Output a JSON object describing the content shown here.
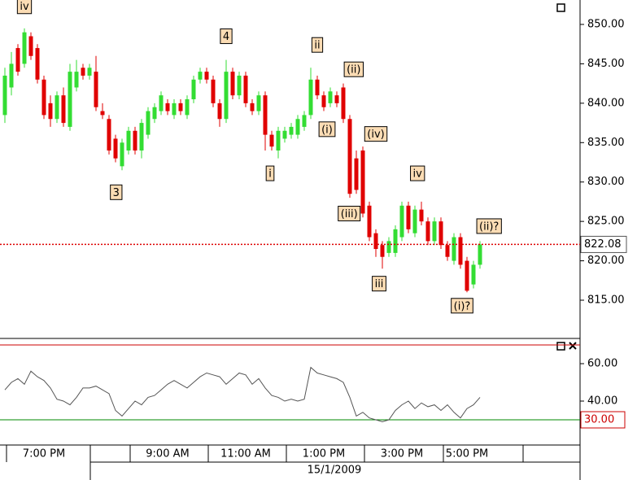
{
  "chart_data": [
    {
      "type": "candlestick",
      "categories": [
        null,
        null,
        null,
        null,
        null,
        null,
        "7:00 PM",
        null,
        null,
        null,
        null,
        null,
        null,
        null,
        null,
        null,
        null,
        null,
        null,
        null,
        null,
        null,
        null,
        null,
        null,
        "9:00 AM",
        null,
        null,
        null,
        null,
        null,
        null,
        null,
        null,
        null,
        null,
        null,
        "11:00 AM",
        null,
        null,
        null,
        null,
        null,
        null,
        null,
        null,
        null,
        null,
        null,
        "1:00 PM",
        null,
        null,
        null,
        null,
        null,
        null,
        null,
        null,
        null,
        null,
        null,
        "3:00 PM",
        null,
        null,
        null,
        null,
        null,
        null,
        null,
        null,
        null,
        "5:00 PM",
        null,
        null
      ],
      "date_label": "15/1/2009",
      "open": [
        838.5,
        842,
        847,
        845,
        848.5,
        847,
        843,
        840,
        838,
        841,
        837,
        842,
        844.5,
        843.5,
        844,
        839,
        838,
        835.5,
        832,
        834,
        836.5,
        834,
        836,
        838,
        839,
        840,
        838.5,
        840,
        838.5,
        840.5,
        843,
        844,
        843,
        840,
        838,
        844,
        841,
        843.5,
        840,
        839,
        841,
        836,
        834,
        835.5,
        836,
        836,
        837,
        838.5,
        843,
        841,
        840,
        841,
        842,
        838,
        833,
        834,
        827,
        823.5,
        822,
        821,
        821,
        823,
        827,
        823.5,
        826.5,
        825,
        822.5,
        825,
        822,
        820,
        823,
        820,
        817,
        819.5
      ],
      "high": [
        844.5,
        846.5,
        847.5,
        849.5,
        849,
        847.5,
        843.5,
        841,
        841.5,
        842,
        845,
        845.5,
        845,
        845,
        846,
        840,
        838.5,
        836,
        835.5,
        837,
        837,
        838,
        839.5,
        840,
        841.5,
        840.5,
        840.5,
        840.5,
        841,
        843.5,
        844.5,
        844.5,
        843.5,
        840.5,
        845.5,
        844.5,
        844,
        844,
        840.5,
        841.5,
        841.5,
        836.5,
        837,
        837,
        837.5,
        838.5,
        839,
        844.5,
        843.5,
        841.5,
        842,
        841.5,
        842.5,
        838.5,
        834,
        834.5,
        827.5,
        824,
        822.5,
        823,
        824.5,
        827.5,
        827.5,
        827,
        827.5,
        825.5,
        825.5,
        825.5,
        822.5,
        823.5,
        823.5,
        820.5,
        820,
        822.5
      ],
      "low": [
        837.5,
        841,
        843.5,
        844.5,
        845.5,
        842.5,
        838,
        837,
        837.5,
        837,
        836.5,
        841.5,
        843,
        843,
        839,
        838,
        833.5,
        832.5,
        831.5,
        833.5,
        833.5,
        833,
        835.5,
        837.5,
        838.5,
        838.5,
        838,
        838.5,
        838,
        840,
        842.5,
        842.5,
        839.5,
        837,
        837.5,
        840.5,
        840.5,
        839.5,
        838.5,
        838.5,
        834,
        834,
        833,
        835,
        835.5,
        835.5,
        836.5,
        838,
        840.5,
        839,
        839.5,
        839.5,
        837.5,
        828,
        828.5,
        825.5,
        822.5,
        820.5,
        819,
        820.5,
        820.5,
        822.5,
        823.5,
        823,
        824.5,
        822,
        822,
        821.5,
        820,
        819.5,
        819,
        816,
        816.5,
        819
      ],
      "close": [
        843.5,
        845,
        844,
        849,
        846,
        843,
        838.5,
        838,
        841,
        837.5,
        844,
        844,
        843.5,
        844.5,
        839.5,
        838.5,
        834,
        833,
        835,
        836.5,
        834,
        837.5,
        839,
        839.5,
        841,
        839,
        840,
        839,
        840.5,
        843,
        844,
        843,
        840,
        838,
        844,
        841,
        843.5,
        840,
        839,
        841,
        836,
        834.5,
        836.5,
        836.5,
        837,
        838,
        838.5,
        843,
        841,
        839.5,
        841.5,
        840,
        838,
        828.5,
        829,
        826,
        823,
        821.5,
        820.5,
        822.5,
        824,
        827,
        824,
        826.5,
        825,
        822.5,
        825,
        822,
        820.5,
        823,
        819.5,
        816.2,
        819.5,
        822.08
      ],
      "up_color": "#33dd33",
      "down_color": "#e00000",
      "ylim": [
        810.25,
        853.1
      ],
      "yticks": [
        {
          "value": 815,
          "label": "815.00"
        },
        {
          "value": 820,
          "label": "820.00"
        },
        {
          "value": 825,
          "label": "825.00"
        },
        {
          "value": 830,
          "label": "830.00"
        },
        {
          "value": 835,
          "label": "835.00"
        },
        {
          "value": 840,
          "label": "840.00"
        },
        {
          "value": 845,
          "label": "845.00"
        },
        {
          "value": 850,
          "label": "850.00"
        }
      ],
      "last_price": 822.08,
      "last_price_color": "#dd0000",
      "annotations": [
        {
          "text": "iv",
          "x": 3,
          "y": 852.3
        },
        {
          "text": "4",
          "x": 34,
          "y": 848.5
        },
        {
          "text": "ii",
          "x": 48,
          "y": 847.4
        },
        {
          "text": "(ii)",
          "x": 53.6,
          "y": 844.3
        },
        {
          "text": "(i)",
          "x": 49.5,
          "y": 836.7
        },
        {
          "text": "(iv)",
          "x": 57,
          "y": 836.1
        },
        {
          "text": "i",
          "x": 40.75,
          "y": 831.1
        },
        {
          "text": "iv",
          "x": 63.4,
          "y": 831.1
        },
        {
          "text": "3",
          "x": 17.1,
          "y": 828.7
        },
        {
          "text": "(iii)",
          "x": 52.9,
          "y": 826.0
        },
        {
          "text": "(ii)?",
          "x": 74.4,
          "y": 824.4
        },
        {
          "text": "iii",
          "x": 57.5,
          "y": 817.1
        },
        {
          "text": "(i)?",
          "x": 70.25,
          "y": 814.3
        }
      ]
    },
    {
      "type": "line",
      "values": [
        46,
        50,
        52,
        49,
        56,
        53,
        51,
        47,
        41,
        40,
        38,
        42,
        47,
        47,
        48,
        46,
        44,
        35,
        32,
        36,
        40,
        38,
        42,
        43,
        46,
        49,
        51,
        49,
        47,
        50,
        53,
        55,
        54,
        53,
        49,
        52,
        55,
        54,
        49,
        52,
        47,
        43,
        42,
        40,
        41,
        40,
        41,
        58,
        55,
        54,
        53,
        52,
        50,
        42,
        32,
        34,
        31,
        30,
        29,
        30,
        35,
        38,
        40,
        36,
        39,
        37,
        38,
        35,
        38,
        34,
        31,
        36,
        38,
        42
      ],
      "color": "#555555",
      "ylim": [
        17.4,
        72.6
      ],
      "yticks": [
        {
          "value": 40,
          "label": "40.00"
        },
        {
          "value": 60,
          "label": "60.00"
        }
      ],
      "levels": [
        {
          "value": 70,
          "color": "#cc0000"
        },
        {
          "value": 30,
          "label": "30.00",
          "color": "#008800"
        }
      ]
    }
  ]
}
